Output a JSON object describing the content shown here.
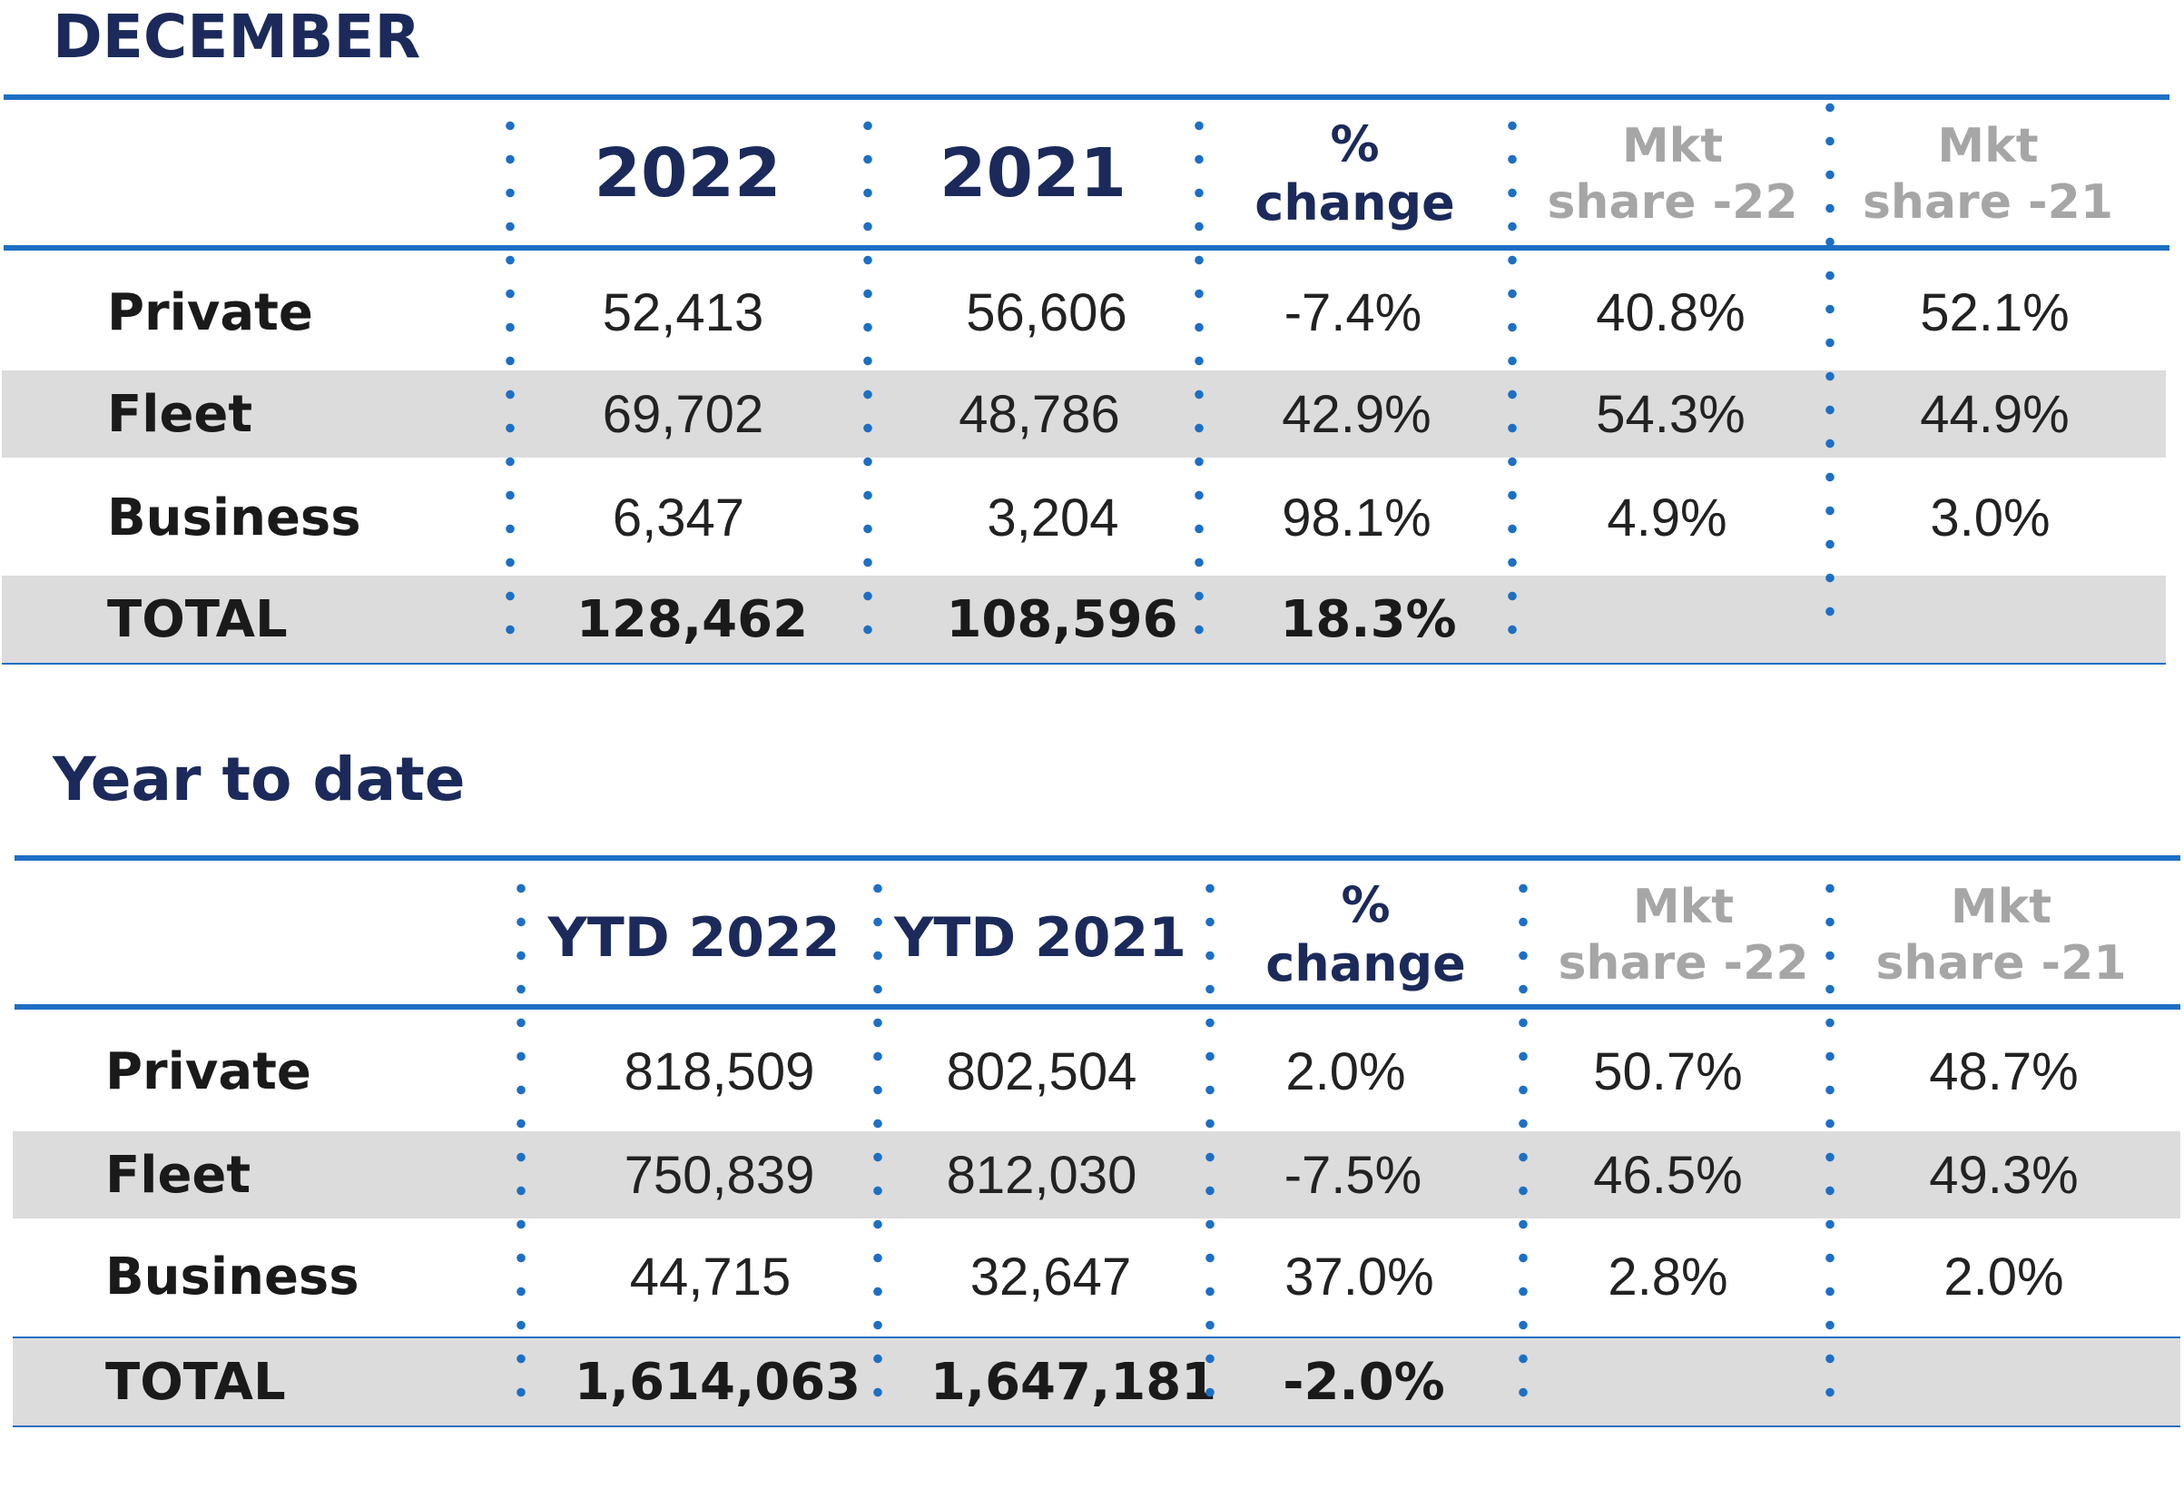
{
  "sections": [
    {
      "title": "DECEMBER",
      "headers": [
        "2022",
        "2021",
        "%",
        "change",
        "Mkt",
        "share -22",
        "Mkt",
        "share -21"
      ],
      "rows": [
        {
          "label": "Private",
          "values": [
            "52,413",
            "56,606",
            "-7.4%",
            "40.8%",
            "52.1%"
          ]
        },
        {
          "label": "Fleet",
          "values": [
            "69,702",
            "48,786",
            "42.9%",
            "54.3%",
            "44.9%"
          ]
        },
        {
          "label": "Business",
          "values": [
            "6,347",
            "3,204",
            "98.1%",
            "4.9%",
            "3.0%"
          ]
        }
      ],
      "total": {
        "label": "TOTAL",
        "values": [
          "128,462",
          "108,596",
          "18.3%"
        ]
      }
    },
    {
      "title": "Year to date",
      "headers": [
        "YTD 2022",
        "YTD 2021",
        "%",
        "change",
        "Mkt",
        "share -22",
        "Mkt",
        "share -21"
      ],
      "rows": [
        {
          "label": "Private",
          "values": [
            "818,509",
            "802,504",
            "2.0%",
            "50.7%",
            "48.7%"
          ]
        },
        {
          "label": "Fleet",
          "values": [
            "750,839",
            "812,030",
            "-7.5%",
            "46.5%",
            "49.3%"
          ]
        },
        {
          "label": "Business",
          "values": [
            "44,715",
            "32,647",
            "37.0%",
            "2.8%",
            "2.0%"
          ]
        }
      ],
      "total": {
        "label": "TOTAL",
        "values": [
          "1,614,063",
          "1,647,181",
          "-2.0%"
        ]
      }
    }
  ],
  "colors": {
    "title": "#1b2a5a",
    "accent": "#1d6fc4",
    "stripe": "#dcdcdc",
    "muted_header": "#a6a6a6"
  }
}
